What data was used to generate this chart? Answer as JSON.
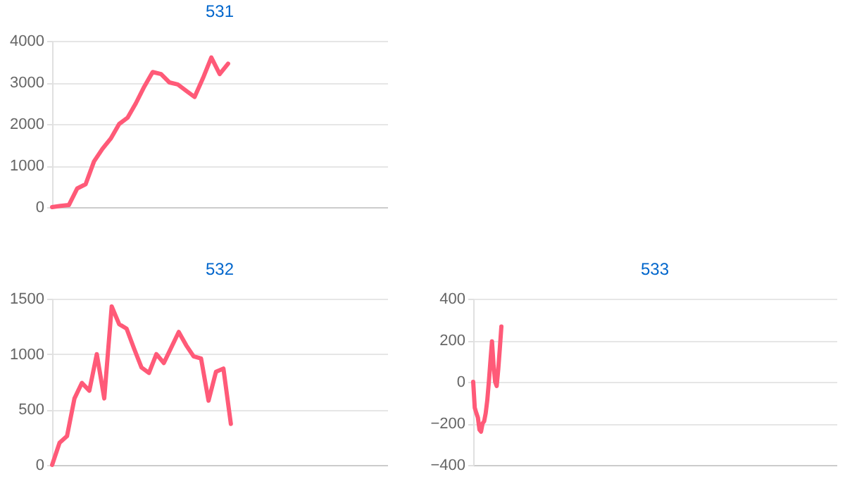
{
  "chart_data": [
    {
      "type": "line",
      "title": "531",
      "tick_labels": "y",
      "grid": "y",
      "categories": [
        null,
        null,
        null,
        null,
        null,
        null,
        null,
        null,
        null,
        null,
        null,
        null,
        null,
        null,
        null,
        null,
        null,
        null,
        null,
        null,
        null,
        null,
        null,
        null,
        null,
        null,
        null,
        null,
        null,
        null,
        null,
        null,
        null,
        null,
        null,
        null,
        null,
        null,
        null,
        null,
        null
      ],
      "series": [
        {
          "color": "#ff5a78",
          "values": [
            0,
            30,
            50,
            450,
            550,
            1100,
            1400,
            1650,
            2000,
            2150,
            2500,
            2900,
            3250,
            3200,
            3000,
            2950,
            2800,
            2650,
            3100,
            3600,
            3200,
            3450,
            null,
            null,
            null,
            null,
            null,
            null,
            null,
            null,
            null,
            null,
            null,
            null,
            null,
            null,
            null,
            null,
            null,
            null,
            null
          ]
        }
      ],
      "ylim": [
        0,
        4000
      ],
      "yticks": [
        0,
        1000,
        2000,
        3000,
        4000
      ]
    },
    {
      "type": "line",
      "title": "532",
      "tick_labels": "y",
      "grid": "y",
      "categories": [
        null,
        null,
        null,
        null,
        null,
        null,
        null,
        null,
        null,
        null,
        null,
        null,
        null,
        null,
        null,
        null,
        null,
        null,
        null,
        null,
        null,
        null,
        null,
        null,
        null,
        null,
        null,
        null,
        null,
        null,
        null,
        null,
        null,
        null,
        null,
        null,
        null,
        null,
        null,
        null,
        null,
        null,
        null,
        null,
        null,
        null
      ],
      "series": [
        {
          "color": "#ff5a78",
          "values": [
            0,
            200,
            260,
            600,
            740,
            670,
            1000,
            600,
            1430,
            1270,
            1230,
            1050,
            880,
            830,
            1000,
            920,
            1060,
            1200,
            1080,
            980,
            960,
            580,
            840,
            870,
            370,
            null,
            null,
            null,
            null,
            null,
            null,
            null,
            null,
            null,
            null,
            null,
            null,
            null,
            null,
            null,
            null,
            null,
            null,
            null,
            null,
            null
          ]
        }
      ],
      "ylim": [
        0,
        1500
      ],
      "yticks": [
        0,
        500,
        1000,
        1500
      ]
    },
    {
      "type": "line",
      "title": "533",
      "tick_labels": "y",
      "grid": "y",
      "categories": [
        null,
        null,
        null,
        null,
        null,
        null,
        null,
        null,
        null,
        null,
        null,
        null,
        null,
        null,
        null,
        null,
        null,
        null,
        null,
        null,
        null,
        null,
        null,
        null,
        null,
        null,
        null,
        null,
        null,
        null,
        null,
        null,
        null,
        null,
        null,
        null,
        null,
        null,
        null,
        null,
        null,
        null,
        null,
        null,
        null,
        null,
        null,
        null,
        null,
        null,
        null,
        null,
        null,
        null,
        null,
        null,
        null,
        null,
        null,
        null,
        null,
        null,
        null,
        null,
        null,
        null,
        null,
        null,
        null,
        null,
        null,
        null,
        null,
        null,
        null,
        null,
        null,
        null,
        null,
        null,
        null,
        null,
        null,
        null,
        null,
        null,
        null,
        null,
        null,
        null,
        null,
        null,
        null,
        null,
        null,
        null,
        null,
        null,
        null,
        null,
        null,
        null,
        null,
        null,
        null,
        null,
        null,
        null,
        null,
        null,
        null,
        null,
        null,
        null,
        null,
        null,
        null,
        null,
        null,
        null,
        null,
        null,
        null,
        null,
        null,
        null,
        null,
        null,
        null,
        null,
        null,
        null,
        null,
        null,
        null,
        null,
        null,
        null,
        null,
        null,
        null,
        null,
        null,
        null,
        null,
        null,
        null,
        null,
        null,
        null,
        null,
        null,
        null,
        null,
        null,
        null,
        null,
        null,
        null,
        null,
        null,
        null,
        null,
        null,
        null,
        null,
        null,
        null,
        null,
        null,
        null,
        null,
        null,
        null,
        null,
        null,
        null,
        null,
        null,
        null,
        null,
        null,
        null,
        null,
        null,
        null,
        null,
        null,
        null,
        null,
        null,
        null,
        null,
        null,
        null,
        null,
        null,
        null,
        null,
        null,
        null,
        null,
        null,
        null,
        null,
        null,
        null,
        null,
        null,
        null,
        null,
        null,
        null,
        null,
        null,
        null,
        null,
        null,
        null,
        null,
        null,
        null,
        null,
        null,
        null,
        null,
        null,
        null,
        null,
        null,
        null,
        null,
        null
      ],
      "series": [
        {
          "color": "#ff5a78",
          "values": [
            0,
            -125,
            -150,
            -172,
            -230,
            -240,
            -200,
            -190,
            -150,
            -88,
            0,
            100,
            195,
            80,
            0,
            -20,
            60,
            160,
            266,
            null,
            null,
            null,
            null,
            null,
            null,
            null,
            null,
            null,
            null,
            null,
            null,
            null,
            null,
            null,
            null,
            null,
            null,
            null,
            null,
            null,
            null,
            null,
            null,
            null,
            null,
            null,
            null,
            null,
            null,
            null,
            null,
            null,
            null,
            null,
            null,
            null,
            null,
            null,
            null,
            null,
            null,
            null,
            null,
            null,
            null,
            null,
            null,
            null,
            null,
            null,
            null,
            null,
            null,
            null,
            null,
            null,
            null,
            null,
            null,
            null,
            null,
            null,
            null,
            null,
            null,
            null,
            null,
            null,
            null,
            null,
            null,
            null,
            null,
            null,
            null,
            null,
            null,
            null,
            null,
            null,
            null,
            null,
            null,
            null,
            null,
            null,
            null,
            null,
            null,
            null,
            null,
            null,
            null,
            null,
            null,
            null,
            null,
            null,
            null,
            null,
            null,
            null,
            null,
            null,
            null,
            null,
            null,
            null,
            null,
            null,
            null,
            null,
            null,
            null,
            null,
            null,
            null,
            null,
            null,
            null,
            null,
            null,
            null,
            null,
            null,
            null,
            null,
            null,
            null,
            null,
            null,
            null,
            null,
            null,
            null,
            null,
            null,
            null,
            null,
            null,
            null,
            null,
            null,
            null,
            null,
            null,
            null,
            null,
            null,
            null,
            null,
            null,
            null,
            null,
            null,
            null,
            null,
            null,
            null,
            null,
            null,
            null,
            null,
            null,
            null,
            null,
            null,
            null,
            null,
            null,
            null,
            null,
            null,
            null,
            null,
            null,
            null,
            null,
            null,
            null,
            null,
            null,
            null,
            null,
            null,
            null,
            null,
            null,
            null,
            null,
            null,
            null,
            null,
            null,
            null,
            null,
            null,
            null,
            null,
            null,
            null,
            null,
            null,
            null,
            null,
            null,
            null,
            null,
            null,
            null,
            null,
            null,
            null
          ]
        }
      ],
      "ylim": [
        -400,
        400
      ],
      "yticks": [
        -400,
        -200,
        0,
        200,
        400
      ]
    }
  ]
}
